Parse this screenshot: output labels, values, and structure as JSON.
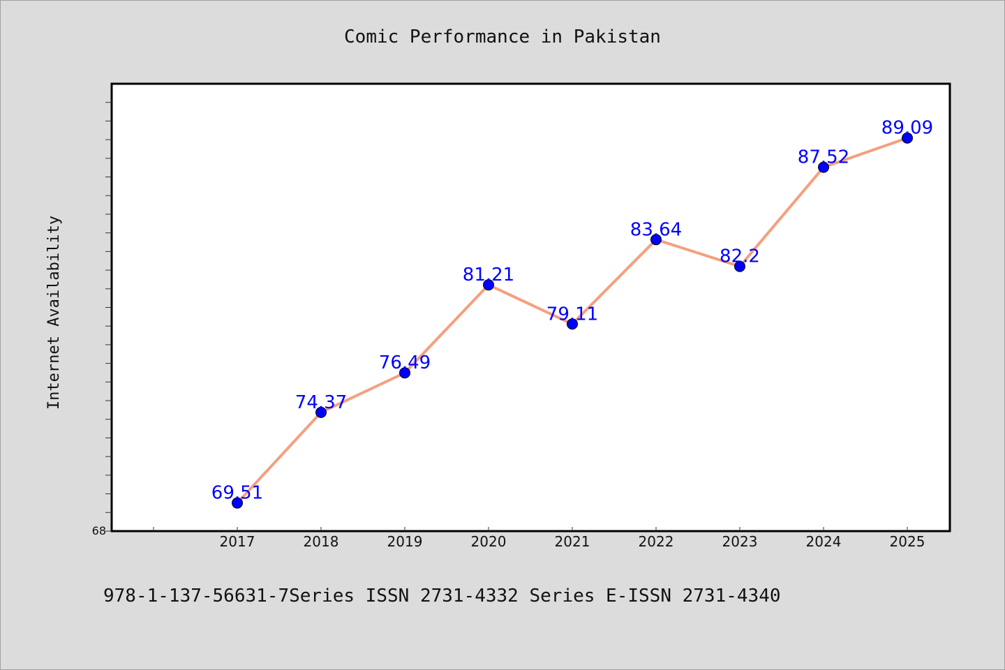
{
  "chart_data": {
    "type": "line",
    "title": "Comic Performance in Pakistan",
    "ylabel": "Internet Availability",
    "xlabel": "",
    "categories": [
      "2017",
      "2018",
      "2019",
      "2020",
      "2021",
      "2022",
      "2023",
      "2024",
      "2025"
    ],
    "series": [
      {
        "values": [
          69.51,
          74.37,
          76.49,
          81.21,
          79.11,
          83.64,
          82.2,
          87.52,
          89.09
        ],
        "labels": [
          "69.51",
          "74.37",
          "76.49",
          "81.21",
          "79.11",
          "83.64",
          "82.2",
          "87.52",
          "89.09"
        ]
      }
    ],
    "ylim": [
      68,
      92
    ],
    "y_min_label": "68",
    "grid": false,
    "legend": "none",
    "colors": {
      "line": "#f4a07e",
      "marker": "#0000ff",
      "data_label": "#0000ff",
      "background": "#dcdcdc",
      "plot_background": "#ffffff"
    }
  },
  "footnote": "978-1-137-56631-7Series ISSN 2731-4332 Series E-ISSN 2731-4340"
}
